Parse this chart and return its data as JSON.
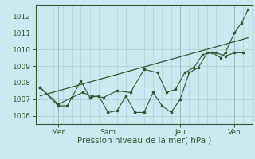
{
  "xlabel": "Pression niveau de la mer( hPa )",
  "bg_color": "#cce8f0",
  "grid_color": "#a8ccd8",
  "line_color": "#2d5a2d",
  "ylim": [
    1005.5,
    1012.7
  ],
  "xlim": [
    0,
    24
  ],
  "yticks": [
    1006,
    1007,
    1008,
    1009,
    1010,
    1011,
    1012
  ],
  "xtick_positions": [
    2.5,
    8,
    16,
    22
  ],
  "xtick_labels": [
    "Mer",
    "Sam",
    "Jeu",
    "Ven"
  ],
  "vline_positions": [
    2.5,
    8,
    16,
    22
  ],
  "series1_x": [
    0.5,
    2.5,
    3.5,
    5.0,
    6.0,
    7.0,
    8.0,
    9.0,
    10.0,
    11.0,
    12.0,
    13.0,
    14.0,
    15.0,
    16.0,
    17.0,
    18.0,
    19.0,
    20.0,
    21.0,
    22.0,
    23.0
  ],
  "series1_y": [
    1007.7,
    1006.6,
    1006.6,
    1008.1,
    1007.1,
    1007.2,
    1006.2,
    1006.3,
    1007.2,
    1006.2,
    1006.2,
    1007.4,
    1006.6,
    1006.2,
    1007.0,
    1008.6,
    1008.9,
    1009.8,
    1009.8,
    1009.6,
    1009.8,
    1009.8
  ],
  "series2_x": [
    0.5,
    2.5,
    4.0,
    5.2,
    6.2,
    7.5,
    9.0,
    10.5,
    12.0,
    13.5,
    14.5,
    15.5,
    16.5,
    17.5,
    18.5,
    19.5,
    20.5,
    21.0,
    22.0,
    22.8,
    23.5
  ],
  "series2_y": [
    1007.7,
    1006.7,
    1007.1,
    1007.4,
    1007.2,
    1007.1,
    1007.5,
    1007.4,
    1008.8,
    1008.6,
    1007.4,
    1007.6,
    1008.6,
    1008.9,
    1009.7,
    1009.8,
    1009.5,
    1009.8,
    1011.0,
    1011.6,
    1012.4
  ],
  "trend_x": [
    0.5,
    23.5
  ],
  "trend_y": [
    1007.2,
    1010.7
  ]
}
